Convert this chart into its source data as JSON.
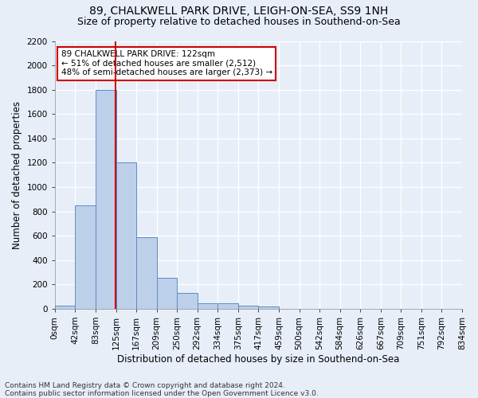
{
  "title1": "89, CHALKWELL PARK DRIVE, LEIGH-ON-SEA, SS9 1NH",
  "title2": "Size of property relative to detached houses in Southend-on-Sea",
  "xlabel": "Distribution of detached houses by size in Southend-on-Sea",
  "ylabel": "Number of detached properties",
  "footer": "Contains HM Land Registry data © Crown copyright and database right 2024.\nContains public sector information licensed under the Open Government Licence v3.0.",
  "bin_labels": [
    "0sqm",
    "42sqm",
    "83sqm",
    "125sqm",
    "167sqm",
    "209sqm",
    "250sqm",
    "292sqm",
    "334sqm",
    "375sqm",
    "417sqm",
    "459sqm",
    "500sqm",
    "542sqm",
    "584sqm",
    "626sqm",
    "667sqm",
    "709sqm",
    "751sqm",
    "792sqm",
    "834sqm"
  ],
  "bar_heights": [
    25,
    850,
    1800,
    1200,
    585,
    255,
    130,
    45,
    45,
    28,
    18,
    0,
    0,
    0,
    0,
    0,
    0,
    0,
    0,
    0
  ],
  "bar_color": "#bdd0ea",
  "bar_edge_color": "#5b8cc8",
  "vline_color": "#cc0000",
  "annotation_text": "89 CHALKWELL PARK DRIVE: 122sqm\n← 51% of detached houses are smaller (2,512)\n48% of semi-detached houses are larger (2,373) →",
  "ylim": [
    0,
    2200
  ],
  "yticks": [
    0,
    200,
    400,
    600,
    800,
    1000,
    1200,
    1400,
    1600,
    1800,
    2000,
    2200
  ],
  "bg_color": "#e8eef8",
  "plot_bg_color": "#e8eef8",
  "grid_color": "#ffffff",
  "title1_fontsize": 10,
  "title2_fontsize": 9,
  "xlabel_fontsize": 8.5,
  "ylabel_fontsize": 8.5,
  "footer_fontsize": 6.5,
  "tick_fontsize": 7.5,
  "ann_fontsize": 7.5
}
